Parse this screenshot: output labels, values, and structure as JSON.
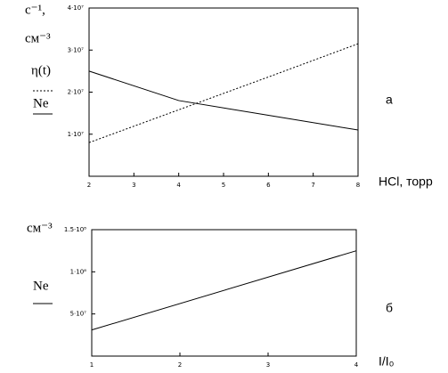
{
  "chart_data": [
    {
      "type": "line",
      "y_labels": [
        "с⁻¹,",
        "см⁻³"
      ],
      "xlabel": "HCl, торр",
      "panel_label": "а",
      "x": [
        2,
        4,
        6,
        8
      ],
      "series": [
        {
          "name": "η(t)",
          "color": "#000000",
          "style": "dotted",
          "values": [
            8000000,
            15800000,
            23600000,
            31500000
          ]
        },
        {
          "name": "Ne",
          "color": "#000000",
          "style": "solid",
          "values": [
            25000000,
            18000000,
            14500000,
            11000000
          ]
        }
      ],
      "xlim": [
        2,
        8
      ],
      "ylim": [
        0,
        40000000
      ],
      "xticks": [
        2,
        3,
        4,
        5,
        6,
        7,
        8
      ],
      "yticks": [
        {
          "value": 10000000,
          "label": "1·10⁷"
        },
        {
          "value": 20000000,
          "label": "2·10⁷"
        },
        {
          "value": 30000000,
          "label": "3·10⁷"
        },
        {
          "value": 40000000,
          "label": "4·10⁷"
        }
      ]
    },
    {
      "type": "line",
      "y_labels": [
        "см⁻³"
      ],
      "xlabel": "I/I₀",
      "panel_label": "б",
      "x": [
        1,
        4
      ],
      "series": [
        {
          "name": "Ne",
          "color": "#000000",
          "style": "solid",
          "values": [
            31000000,
            125000000
          ]
        }
      ],
      "xlim": [
        1,
        4
      ],
      "ylim": [
        0,
        150000000
      ],
      "xticks": [
        1,
        2,
        3,
        4
      ],
      "yticks": [
        {
          "value": 50000000,
          "label": "5·10⁷"
        },
        {
          "value": 100000000,
          "label": "1·10⁸"
        },
        {
          "value": 150000000,
          "label": "1.5·10⁸"
        }
      ]
    }
  ]
}
